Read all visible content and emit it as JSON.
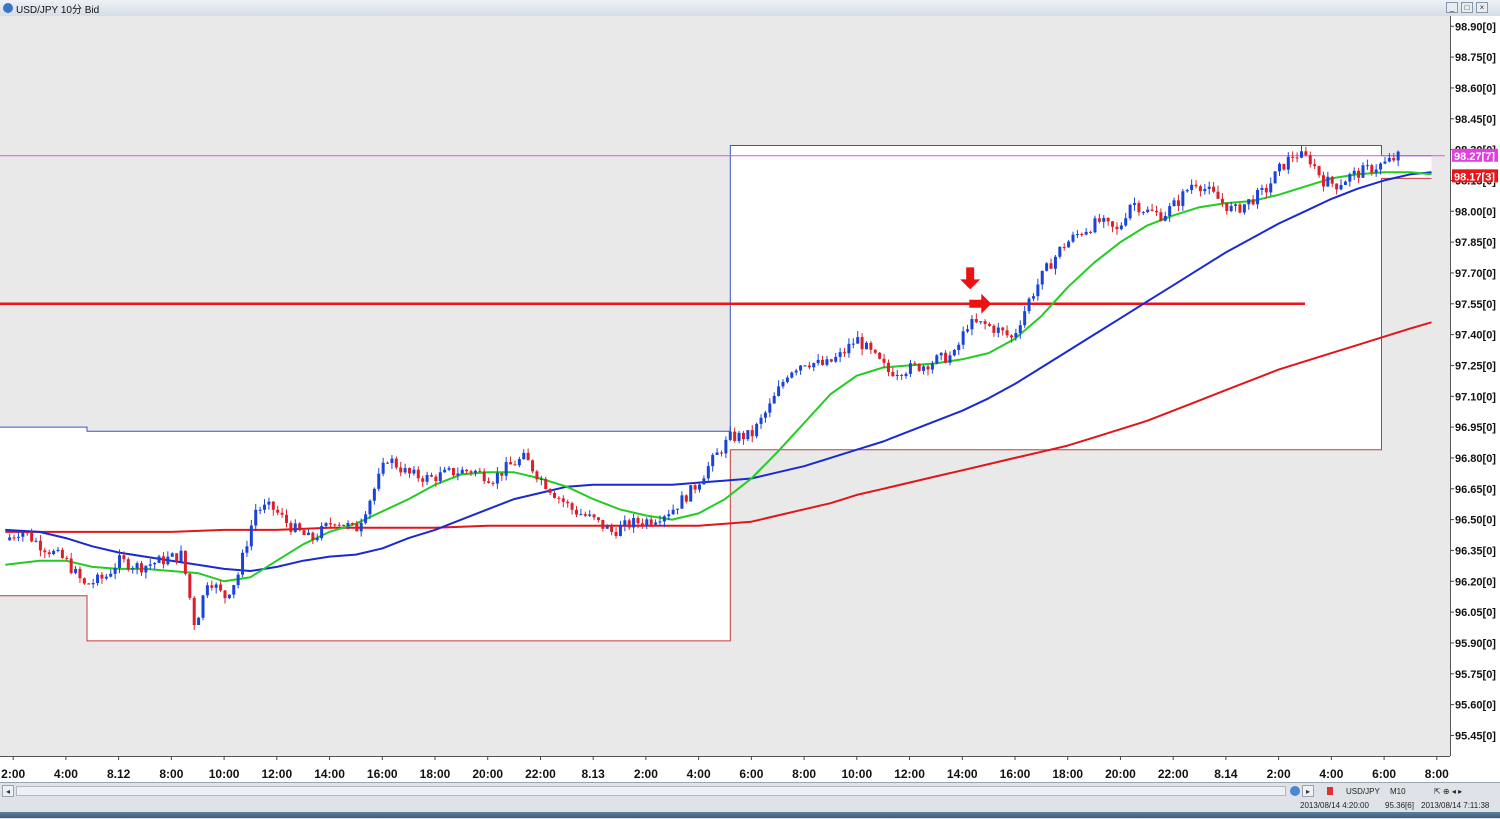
{
  "window": {
    "title": "USD/JPY 10分 Bid",
    "buttons": [
      "minimize",
      "maximize",
      "close"
    ]
  },
  "colors": {
    "background": "#ffffff",
    "shaded": "#e9e9e9",
    "bull": "#1a44d8",
    "bear": "#dd1f2a",
    "ma_short": "#22cc22",
    "ma_mid": "#1a2ad0",
    "ma_long": "#e0161b",
    "box_upper": "#3255c8",
    "box_lower": "#c83a3a",
    "hline_magenta": "#e64ee6",
    "hline_red": "#e8161b",
    "arrow": "#ee1111",
    "tag_magenta": "#e040e0",
    "tag_red": "#e8161b"
  },
  "chart_data": {
    "type": "candlestick",
    "title": "USD/JPY 10分 Bid",
    "xlabel": "",
    "ylabel": "",
    "ylim": [
      95.35,
      98.95
    ],
    "yticks": [
      "98.90[0]",
      "98.75[0]",
      "98.60[0]",
      "98.45[0]",
      "98.30[0]",
      "98.15[0]",
      "98.00[0]",
      "97.85[0]",
      "97.70[0]",
      "97.55[0]",
      "97.40[0]",
      "97.25[0]",
      "97.10[0]",
      "96.95[0]",
      "96.80[0]",
      "96.65[0]",
      "96.50[0]",
      "96.35[0]",
      "96.20[0]",
      "96.05[0]",
      "95.90[0]",
      "95.75[0]",
      "95.60[0]",
      "95.45[0]"
    ],
    "xticks": [
      {
        "t": 2,
        "label": "2:00"
      },
      {
        "t": 4,
        "label": "4:00"
      },
      {
        "t": 6,
        "label": "8.12"
      },
      {
        "t": 8,
        "label": "8:00"
      },
      {
        "t": 10,
        "label": "10:00"
      },
      {
        "t": 12,
        "label": "12:00"
      },
      {
        "t": 14,
        "label": "14:00"
      },
      {
        "t": 16,
        "label": "16:00"
      },
      {
        "t": 18,
        "label": "18:00"
      },
      {
        "t": 20,
        "label": "20:00"
      },
      {
        "t": 22,
        "label": "22:00"
      },
      {
        "t": 24,
        "label": "8.13"
      },
      {
        "t": 26,
        "label": "2:00"
      },
      {
        "t": 28,
        "label": "4:00"
      },
      {
        "t": 30,
        "label": "6:00"
      },
      {
        "t": 32,
        "label": "8:00"
      },
      {
        "t": 34,
        "label": "10:00"
      },
      {
        "t": 36,
        "label": "12:00"
      },
      {
        "t": 38,
        "label": "14:00"
      },
      {
        "t": 40,
        "label": "16:00"
      },
      {
        "t": 42,
        "label": "18:00"
      },
      {
        "t": 44,
        "label": "20:00"
      },
      {
        "t": 46,
        "label": "22:00"
      },
      {
        "t": 48,
        "label": "8.14"
      },
      {
        "t": 50,
        "label": "2:00"
      },
      {
        "t": 52,
        "label": "4:00"
      },
      {
        "t": 54,
        "label": "6:00"
      },
      {
        "t": 56,
        "label": "8:00"
      }
    ],
    "price_path": [
      [
        1.7,
        96.4
      ],
      [
        2.3,
        96.45
      ],
      [
        3.0,
        96.38
      ],
      [
        4.0,
        96.3
      ],
      [
        4.7,
        96.18
      ],
      [
        5.5,
        96.22
      ],
      [
        6.0,
        96.3
      ],
      [
        6.8,
        96.27
      ],
      [
        7.6,
        96.3
      ],
      [
        8.4,
        96.33
      ],
      [
        8.9,
        95.98
      ],
      [
        9.4,
        96.22
      ],
      [
        10.0,
        96.12
      ],
      [
        10.5,
        96.22
      ],
      [
        11.2,
        96.55
      ],
      [
        11.8,
        96.56
      ],
      [
        12.5,
        96.47
      ],
      [
        13.3,
        96.4
      ],
      [
        14.2,
        96.5
      ],
      [
        15.0,
        96.45
      ],
      [
        15.6,
        96.62
      ],
      [
        16.2,
        96.8
      ],
      [
        17.0,
        96.72
      ],
      [
        17.8,
        96.7
      ],
      [
        18.6,
        96.73
      ],
      [
        19.4,
        96.74
      ],
      [
        20.2,
        96.7
      ],
      [
        20.8,
        96.76
      ],
      [
        21.4,
        96.8
      ],
      [
        22.0,
        96.7
      ],
      [
        22.6,
        96.62
      ],
      [
        23.2,
        96.55
      ],
      [
        24.0,
        96.5
      ],
      [
        24.7,
        96.44
      ],
      [
        25.4,
        96.48
      ],
      [
        26.2,
        96.5
      ],
      [
        27.0,
        96.55
      ],
      [
        27.8,
        96.65
      ],
      [
        28.6,
        96.8
      ],
      [
        29.2,
        96.9
      ],
      [
        30.0,
        96.91
      ],
      [
        30.7,
        97.05
      ],
      [
        31.4,
        97.22
      ],
      [
        32.0,
        97.27
      ],
      [
        32.8,
        97.25
      ],
      [
        33.4,
        97.3
      ],
      [
        34.0,
        97.38
      ],
      [
        34.6,
        97.3
      ],
      [
        35.2,
        97.22
      ],
      [
        35.8,
        97.23
      ],
      [
        36.5,
        97.25
      ],
      [
        37.1,
        97.28
      ],
      [
        37.7,
        97.3
      ],
      [
        38.2,
        97.45
      ],
      [
        38.8,
        97.45
      ],
      [
        39.4,
        97.42
      ],
      [
        39.9,
        97.38
      ],
      [
        40.5,
        97.56
      ],
      [
        41.1,
        97.7
      ],
      [
        41.8,
        97.83
      ],
      [
        42.5,
        97.9
      ],
      [
        43.2,
        97.95
      ],
      [
        43.9,
        97.9
      ],
      [
        44.4,
        98.05
      ],
      [
        45.0,
        98.0
      ],
      [
        45.6,
        97.98
      ],
      [
        46.2,
        98.05
      ],
      [
        46.8,
        98.15
      ],
      [
        47.3,
        98.1
      ],
      [
        47.8,
        98.05
      ],
      [
        48.3,
        98.0
      ],
      [
        48.9,
        98.05
      ],
      [
        49.5,
        98.1
      ],
      [
        50.0,
        98.2
      ],
      [
        50.6,
        98.28
      ],
      [
        51.2,
        98.25
      ],
      [
        51.7,
        98.15
      ],
      [
        52.2,
        98.13
      ],
      [
        52.7,
        98.17
      ],
      [
        53.3,
        98.2
      ],
      [
        54.0,
        98.23
      ],
      [
        54.6,
        98.27
      ]
    ],
    "ma_short": [
      [
        1.7,
        96.28
      ],
      [
        3.0,
        96.3
      ],
      [
        4.0,
        96.3
      ],
      [
        5.0,
        96.27
      ],
      [
        6.0,
        96.26
      ],
      [
        7.0,
        96.26
      ],
      [
        8.0,
        96.25
      ],
      [
        9.0,
        96.24
      ],
      [
        10.0,
        96.2
      ],
      [
        11.0,
        96.22
      ],
      [
        12.0,
        96.3
      ],
      [
        13.0,
        96.38
      ],
      [
        14.0,
        96.44
      ],
      [
        15.0,
        96.48
      ],
      [
        16.0,
        96.54
      ],
      [
        17.0,
        96.6
      ],
      [
        18.0,
        96.67
      ],
      [
        19.0,
        96.72
      ],
      [
        20.0,
        96.73
      ],
      [
        21.0,
        96.73
      ],
      [
        22.0,
        96.7
      ],
      [
        23.0,
        96.66
      ],
      [
        24.0,
        96.6
      ],
      [
        25.0,
        96.55
      ],
      [
        26.0,
        96.52
      ],
      [
        27.0,
        96.5
      ],
      [
        28.0,
        96.53
      ],
      [
        29.0,
        96.6
      ],
      [
        30.0,
        96.7
      ],
      [
        31.0,
        96.83
      ],
      [
        32.0,
        96.97
      ],
      [
        33.0,
        97.11
      ],
      [
        34.0,
        97.2
      ],
      [
        35.0,
        97.24
      ],
      [
        36.0,
        97.25
      ],
      [
        37.0,
        97.26
      ],
      [
        38.0,
        97.28
      ],
      [
        39.0,
        97.31
      ],
      [
        40.0,
        97.38
      ],
      [
        41.0,
        97.49
      ],
      [
        42.0,
        97.63
      ],
      [
        43.0,
        97.75
      ],
      [
        44.0,
        97.85
      ],
      [
        45.0,
        97.93
      ],
      [
        46.0,
        97.98
      ],
      [
        47.0,
        98.02
      ],
      [
        48.0,
        98.04
      ],
      [
        49.0,
        98.05
      ],
      [
        50.0,
        98.08
      ],
      [
        51.0,
        98.12
      ],
      [
        52.0,
        98.16
      ],
      [
        53.0,
        98.18
      ],
      [
        54.0,
        98.19
      ],
      [
        55.0,
        98.19
      ],
      [
        55.8,
        98.18
      ]
    ],
    "ma_mid": [
      [
        1.7,
        96.45
      ],
      [
        3.0,
        96.44
      ],
      [
        4.0,
        96.41
      ],
      [
        5.0,
        96.37
      ],
      [
        6.0,
        96.34
      ],
      [
        7.0,
        96.32
      ],
      [
        8.0,
        96.3
      ],
      [
        9.0,
        96.28
      ],
      [
        10.0,
        96.26
      ],
      [
        11.0,
        96.25
      ],
      [
        12.0,
        96.27
      ],
      [
        13.0,
        96.3
      ],
      [
        14.0,
        96.32
      ],
      [
        15.0,
        96.33
      ],
      [
        16.0,
        96.36
      ],
      [
        17.0,
        96.41
      ],
      [
        18.0,
        96.45
      ],
      [
        19.0,
        96.5
      ],
      [
        20.0,
        96.55
      ],
      [
        21.0,
        96.6
      ],
      [
        22.0,
        96.63
      ],
      [
        23.0,
        96.66
      ],
      [
        24.0,
        96.67
      ],
      [
        25.0,
        96.67
      ],
      [
        26.0,
        96.67
      ],
      [
        27.0,
        96.67
      ],
      [
        28.0,
        96.68
      ],
      [
        29.0,
        96.69
      ],
      [
        30.0,
        96.7
      ],
      [
        31.0,
        96.73
      ],
      [
        32.0,
        96.76
      ],
      [
        33.0,
        96.8
      ],
      [
        34.0,
        96.84
      ],
      [
        35.0,
        96.88
      ],
      [
        36.0,
        96.93
      ],
      [
        37.0,
        96.98
      ],
      [
        38.0,
        97.03
      ],
      [
        39.0,
        97.09
      ],
      [
        40.0,
        97.16
      ],
      [
        41.0,
        97.24
      ],
      [
        42.0,
        97.32
      ],
      [
        43.0,
        97.4
      ],
      [
        44.0,
        97.48
      ],
      [
        45.0,
        97.56
      ],
      [
        46.0,
        97.64
      ],
      [
        47.0,
        97.72
      ],
      [
        48.0,
        97.8
      ],
      [
        49.0,
        97.87
      ],
      [
        50.0,
        97.94
      ],
      [
        51.0,
        98.0
      ],
      [
        52.0,
        98.06
      ],
      [
        53.0,
        98.11
      ],
      [
        54.0,
        98.15
      ],
      [
        55.0,
        98.18
      ],
      [
        55.8,
        98.19
      ]
    ],
    "ma_long": [
      [
        1.7,
        96.44
      ],
      [
        4.0,
        96.44
      ],
      [
        6.0,
        96.44
      ],
      [
        8.0,
        96.44
      ],
      [
        10.0,
        96.45
      ],
      [
        12.0,
        96.45
      ],
      [
        14.0,
        96.46
      ],
      [
        16.0,
        96.46
      ],
      [
        18.0,
        96.46
      ],
      [
        20.0,
        96.47
      ],
      [
        22.0,
        96.47
      ],
      [
        24.0,
        96.47
      ],
      [
        26.0,
        96.47
      ],
      [
        28.0,
        96.47
      ],
      [
        29.0,
        96.48
      ],
      [
        30.0,
        96.49
      ],
      [
        31.0,
        96.52
      ],
      [
        32.0,
        96.55
      ],
      [
        33.0,
        96.58
      ],
      [
        34.0,
        96.62
      ],
      [
        35.0,
        96.65
      ],
      [
        36.0,
        96.68
      ],
      [
        37.0,
        96.71
      ],
      [
        38.0,
        96.74
      ],
      [
        39.0,
        96.77
      ],
      [
        40.0,
        96.8
      ],
      [
        41.0,
        96.83
      ],
      [
        42.0,
        96.86
      ],
      [
        43.0,
        96.9
      ],
      [
        44.0,
        96.94
      ],
      [
        45.0,
        96.98
      ],
      [
        46.0,
        97.03
      ],
      [
        47.0,
        97.08
      ],
      [
        48.0,
        97.13
      ],
      [
        49.0,
        97.18
      ],
      [
        50.0,
        97.23
      ],
      [
        51.0,
        97.27
      ],
      [
        52.0,
        97.31
      ],
      [
        53.0,
        97.35
      ],
      [
        54.0,
        97.39
      ],
      [
        55.0,
        97.43
      ],
      [
        55.8,
        97.46
      ]
    ],
    "range_boxes": [
      {
        "name": "upper",
        "points": [
          [
            1.5,
            96.95
          ],
          [
            4.8,
            96.95
          ],
          [
            4.8,
            96.93
          ],
          [
            29.2,
            96.93
          ],
          [
            29.2,
            98.32
          ],
          [
            53.9,
            98.32
          ],
          [
            53.9,
            98.27
          ],
          [
            55.8,
            98.27
          ]
        ]
      },
      {
        "name": "lower",
        "points": [
          [
            1.5,
            96.13
          ],
          [
            4.8,
            96.13
          ],
          [
            4.8,
            95.91
          ],
          [
            29.2,
            95.91
          ],
          [
            29.2,
            96.84
          ],
          [
            53.9,
            96.84
          ],
          [
            53.9,
            98.16
          ],
          [
            55.8,
            98.16
          ]
        ]
      }
    ],
    "hlines": [
      {
        "y": 98.27,
        "x": [
          1.5,
          56.3
        ],
        "color": "magenta"
      },
      {
        "y": 97.55,
        "x": [
          1.5,
          51.0
        ],
        "color": "red"
      }
    ],
    "arrows": [
      {
        "t": 38.3,
        "y": 97.62,
        "dir": "down"
      },
      {
        "t": 39.1,
        "y": 97.55,
        "dir": "right"
      }
    ],
    "price_tags": [
      {
        "y": 98.27,
        "label": "98.27[7]",
        "color": "magenta"
      },
      {
        "y": 98.17,
        "label": "98.17[3]",
        "color": "red"
      }
    ]
  },
  "status_bar": {
    "symbol": "USD/JPY",
    "timeframe": "M10",
    "readout_time": "2013/08/14 4:20:00",
    "readout_price": "95.36[6]",
    "clock": "2013/08/14 7:11:38"
  }
}
